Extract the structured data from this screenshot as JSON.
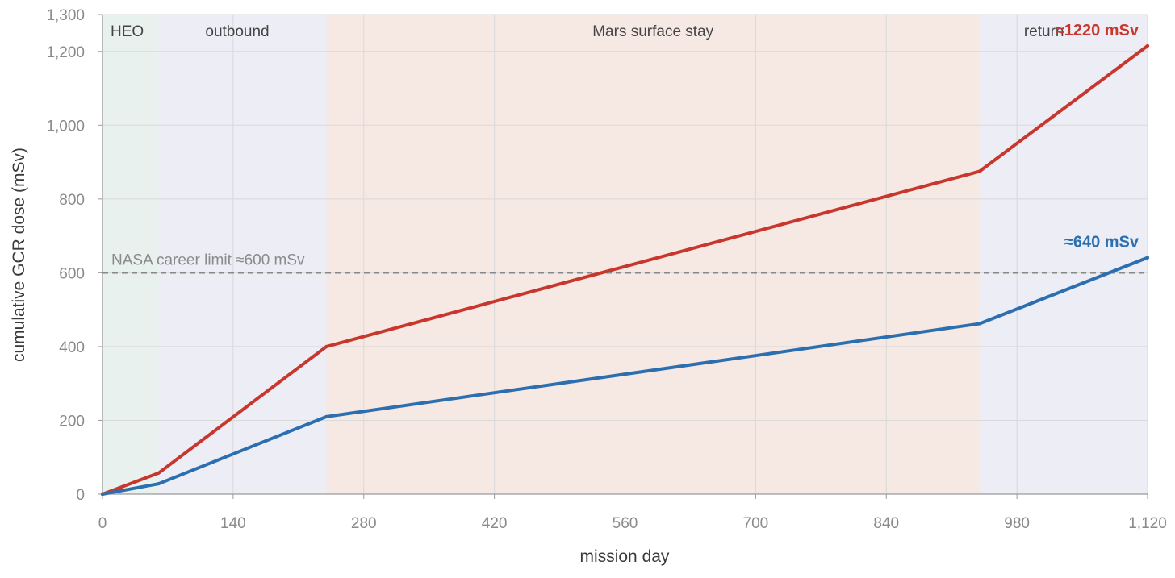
{
  "chart_data": {
    "type": "line",
    "title": "",
    "xlabel": "mission day",
    "ylabel": "cumulative GCR dose (mSv)",
    "xlim": [
      0,
      1120
    ],
    "ylim": [
      0,
      1300
    ],
    "x_ticks": [
      0,
      140,
      280,
      420,
      560,
      700,
      840,
      980,
      1120
    ],
    "x_tick_labels": [
      "0",
      "140",
      "280",
      "420",
      "560",
      "700",
      "840",
      "980",
      "1,120"
    ],
    "y_ticks": [
      0,
      200,
      400,
      600,
      800,
      1000,
      1200,
      1300
    ],
    "y_tick_labels": [
      "0",
      "200",
      "400",
      "600",
      "800",
      "1,000",
      "1,200",
      "1,300"
    ],
    "grid": true,
    "phases": [
      {
        "label": "HEO",
        "start": 0,
        "end": 60,
        "color": "#e8f1ee"
      },
      {
        "label": "outbound",
        "start": 60,
        "end": 240,
        "color": "#ecedf5"
      },
      {
        "label": "Mars surface stay",
        "start": 240,
        "end": 940,
        "color": "#f6e8e3"
      },
      {
        "label": "return",
        "start": 940,
        "end": 1120,
        "color": "#ecedf5"
      }
    ],
    "reference_line": {
      "y": 600,
      "label": "NASA career limit ≈600 mSv",
      "color": "#888888"
    },
    "series": [
      {
        "color": "#c8372d",
        "end_label": "≈1220 mSv",
        "x": [
          0,
          60,
          240,
          940,
          1120
        ],
        "y": [
          0,
          57,
          400,
          875,
          1215
        ]
      },
      {
        "color": "#2c6fb0",
        "end_label": "≈640 mSv",
        "x": [
          0,
          60,
          240,
          940,
          1120
        ],
        "y": [
          0,
          28,
          210,
          462,
          641
        ]
      }
    ]
  }
}
